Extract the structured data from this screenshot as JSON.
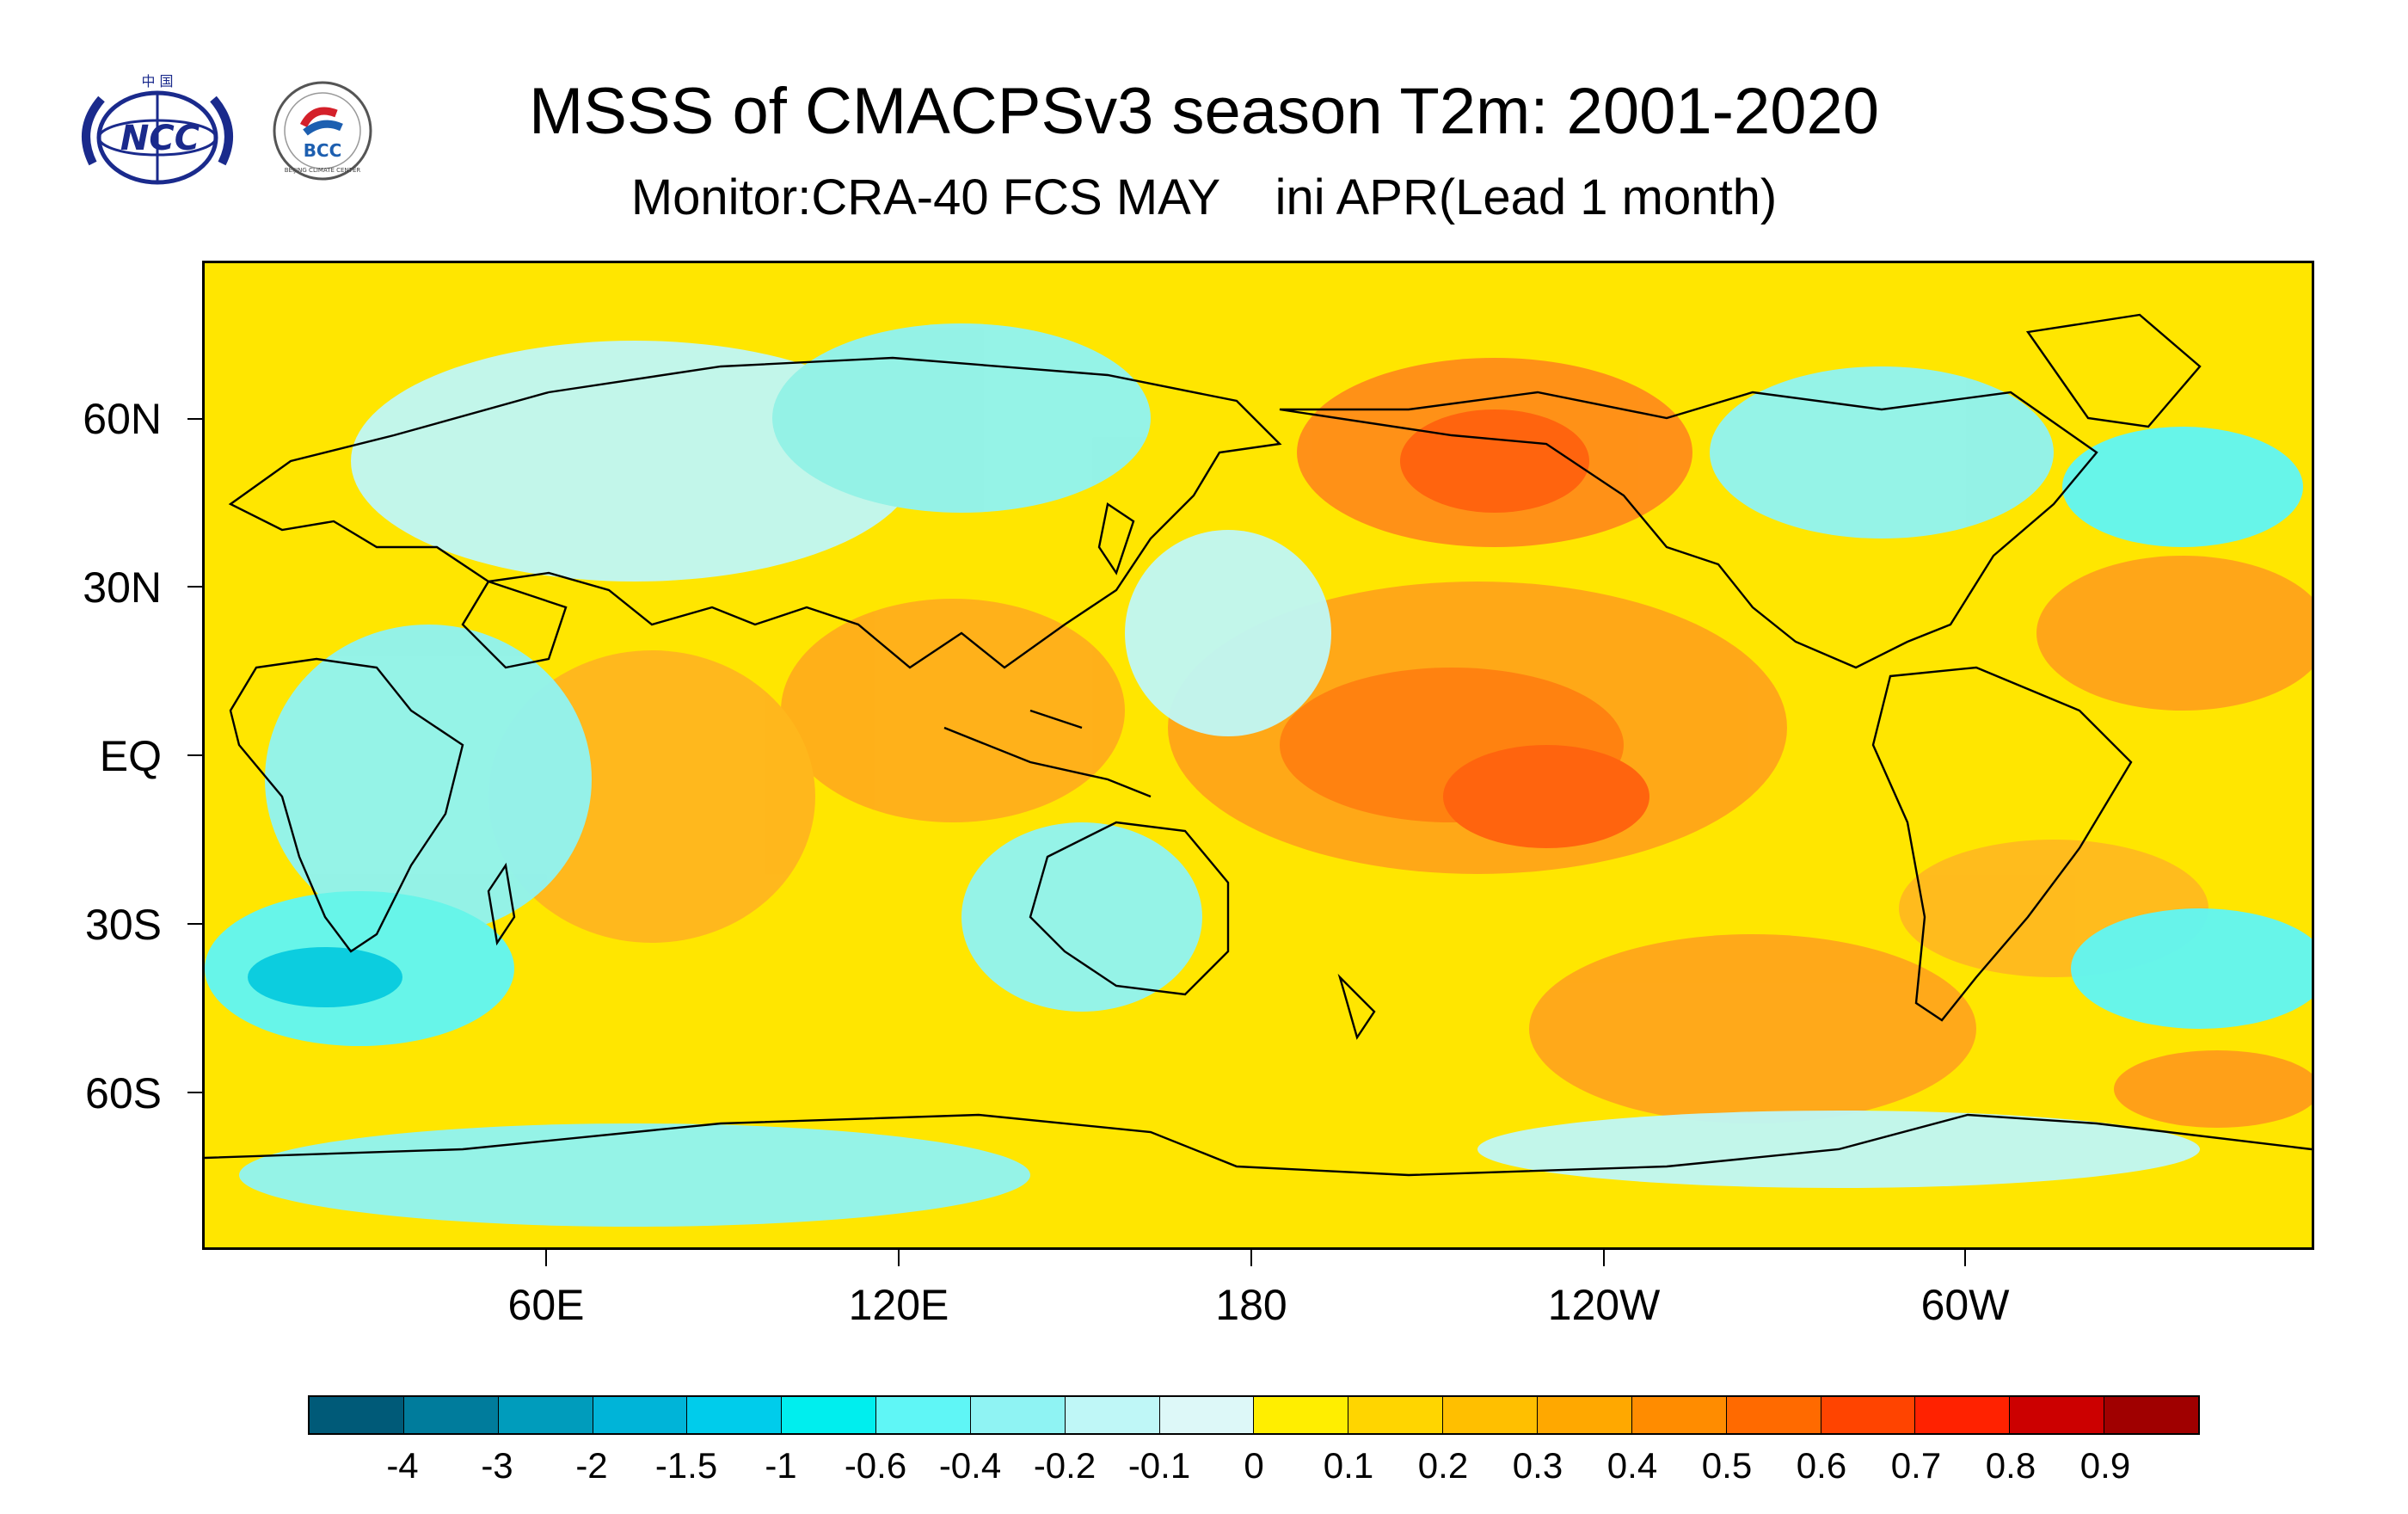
{
  "header": {
    "title": "MSSS of CMACPSv3 season T2m: 2001-2020",
    "subtitle": "Monitor:CRA-40 FCS MAY    ini APR(Lead 1 month)"
  },
  "logos": {
    "ncc": {
      "name": "NCC",
      "top_text": "中 国"
    },
    "bcc": {
      "name": "BCC",
      "ring_text": "BEIJING CLIMATE CENTER"
    }
  },
  "map": {
    "y_axis_labels": [
      "60N",
      "30N",
      "EQ",
      "30S",
      "60S"
    ],
    "x_axis_labels": [
      "60E",
      "120E",
      "180",
      "120W",
      "60W"
    ],
    "base_color": "#ffe600"
  },
  "colorbar": {
    "colors": [
      "#005a78",
      "#007c9c",
      "#009cbc",
      "#00b4d8",
      "#00cceb",
      "#00eeee",
      "#5ff6f6",
      "#8ff3f3",
      "#bff7f7",
      "#ddf8f8",
      "#ffee00",
      "#ffd500",
      "#ffbf00",
      "#ffa800",
      "#ff8c00",
      "#ff6a00",
      "#ff4400",
      "#ff2200",
      "#cc0000",
      "#a00000"
    ],
    "labels": [
      "-4",
      "-3",
      "-2",
      "-1.5",
      "-1",
      "-0.6",
      "-0.4",
      "-0.2",
      "-0.1",
      "0",
      "0.1",
      "0.2",
      "0.3",
      "0.4",
      "0.5",
      "0.6",
      "0.7",
      "0.8",
      "0.9"
    ]
  }
}
